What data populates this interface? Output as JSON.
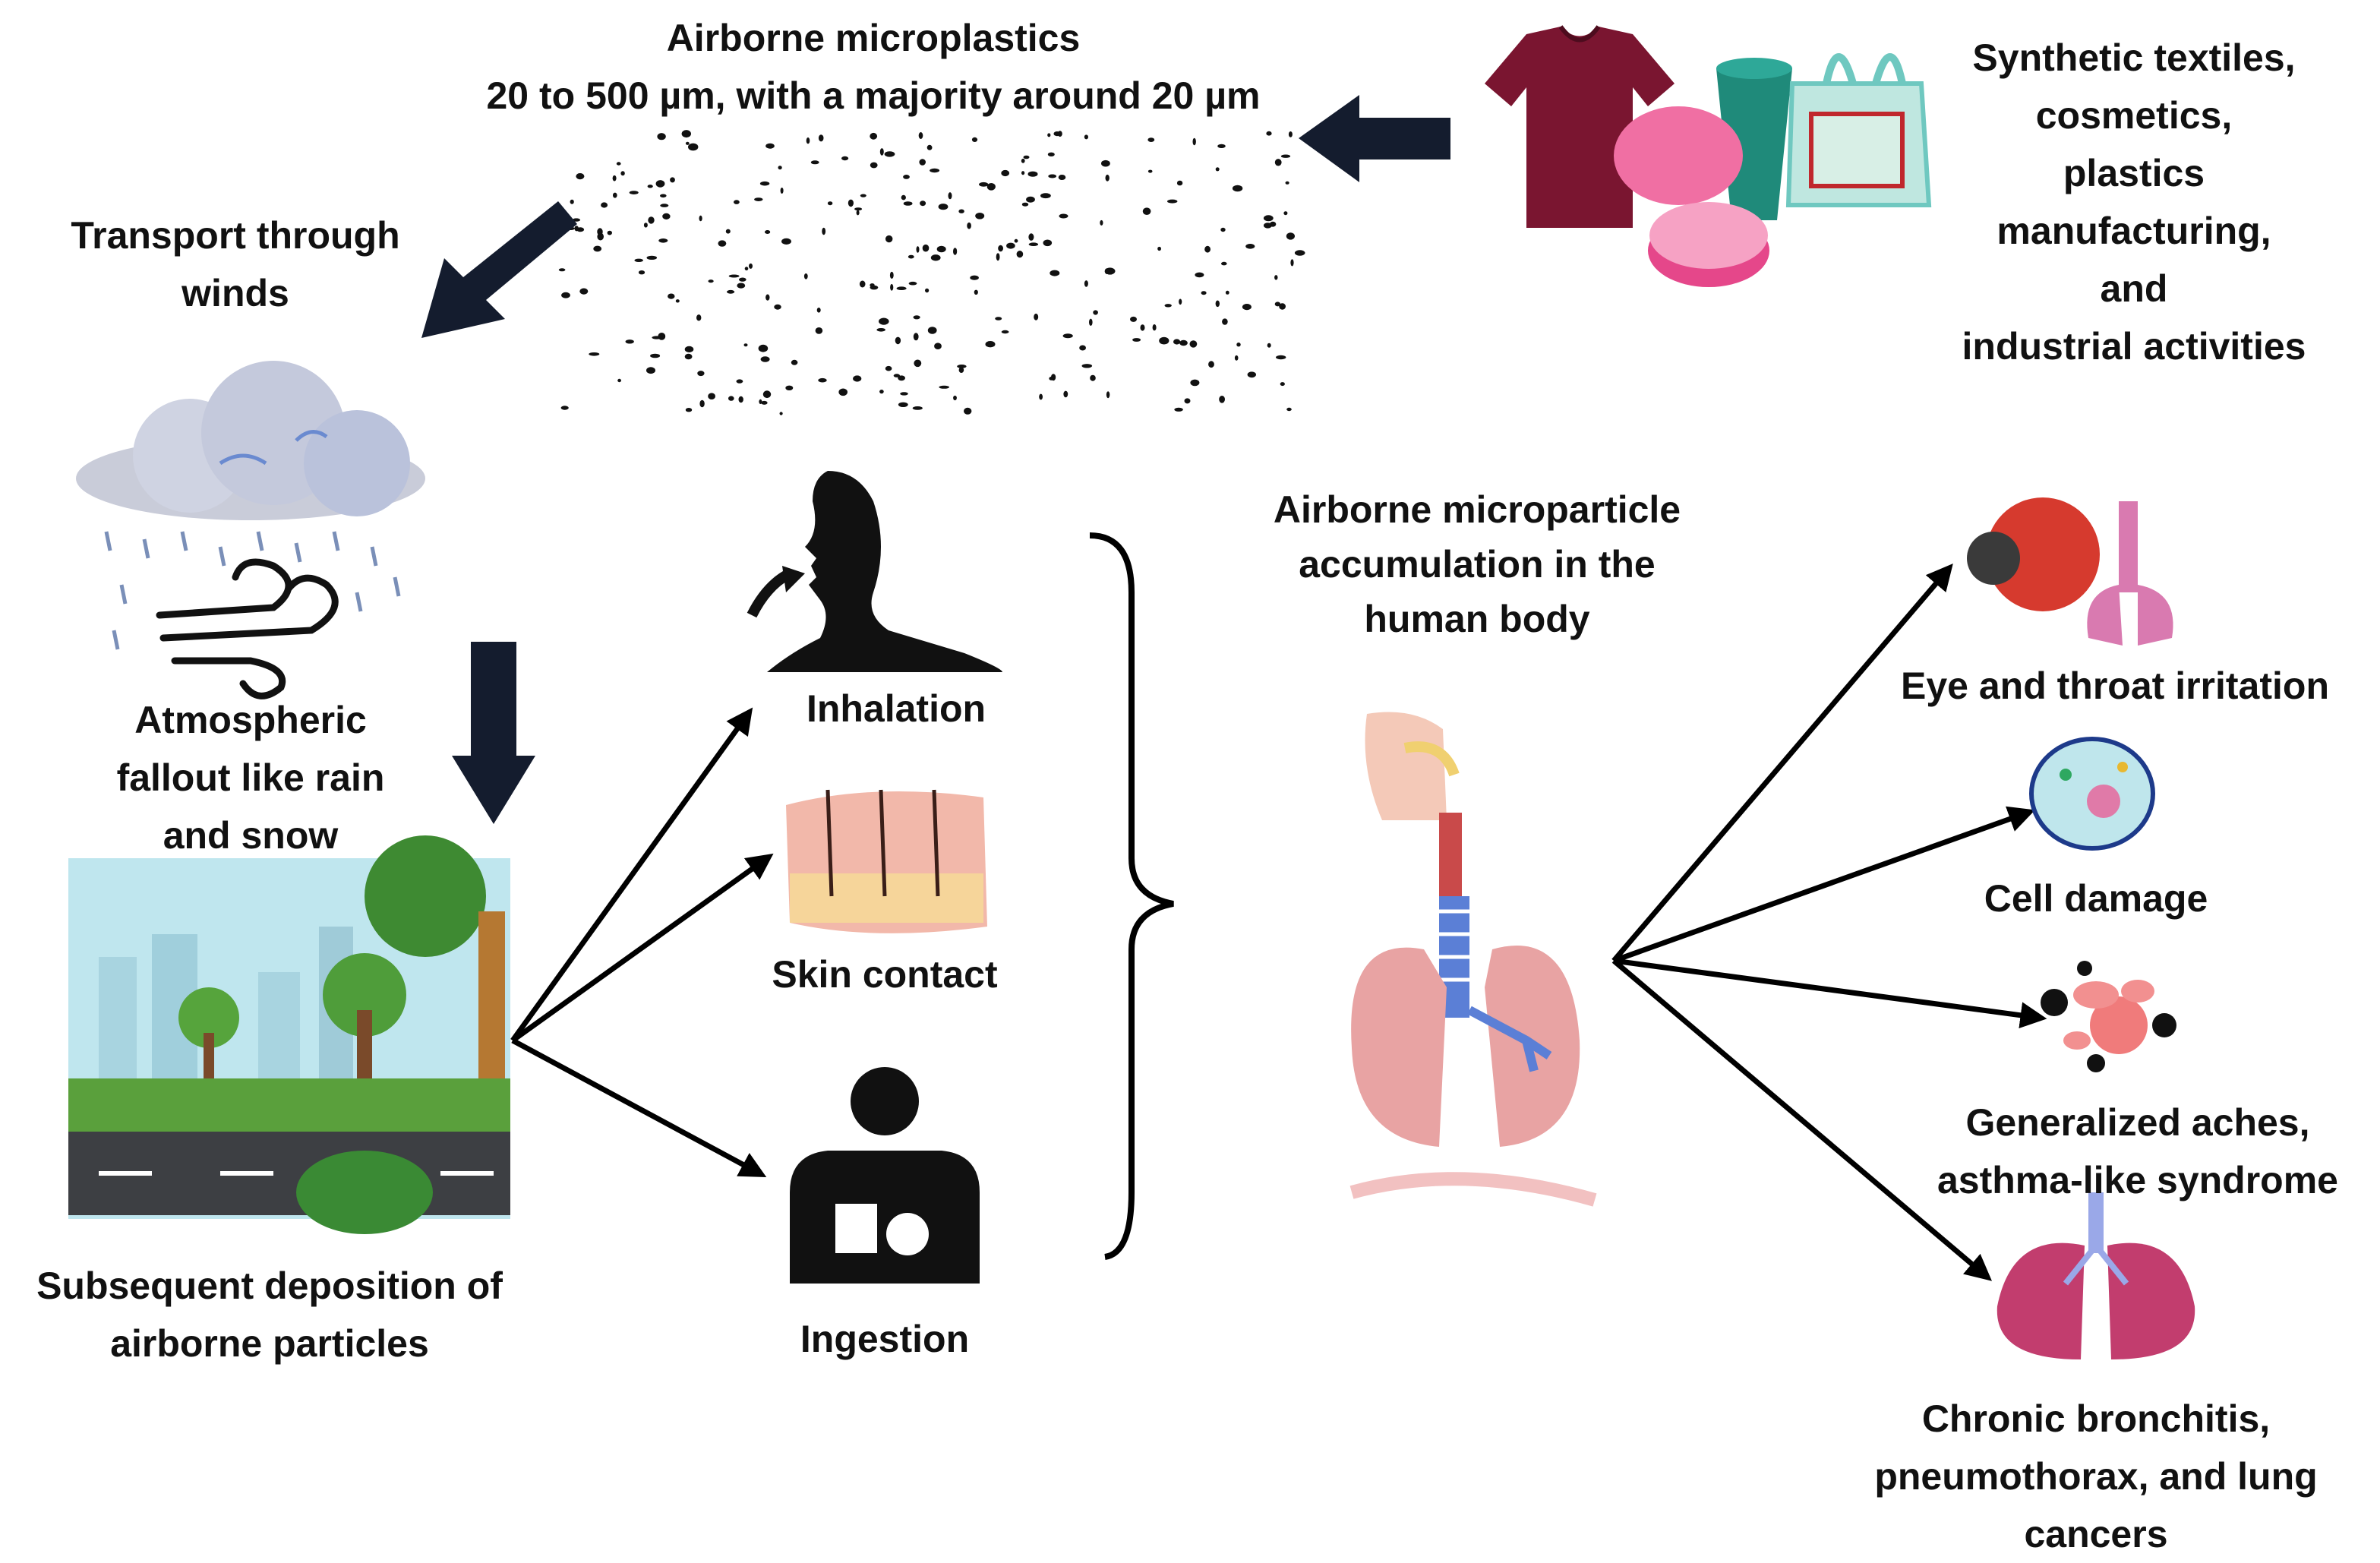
{
  "labels": {
    "airborne_title": [
      "Airborne microplastics",
      "20 to 500 µm, with a majority around 20 µm"
    ],
    "sources": [
      "Synthetic textiles,",
      "cosmetics,",
      "plastics",
      "manufacturing,",
      "and",
      "industrial activities"
    ],
    "transport": [
      "Transport through",
      "winds"
    ],
    "fallout": [
      "Atmospheric",
      "fallout like rain",
      "and snow"
    ],
    "deposition": [
      "Subsequent deposition of",
      "airborne particles"
    ],
    "inhalation": "Inhalation",
    "skin_contact": "Skin contact",
    "ingestion": "Ingestion",
    "accumulation": [
      "Airborne microparticle",
      "accumulation in the",
      "human body"
    ],
    "eye_throat": "Eye and throat irritation",
    "cell_damage": "Cell damage",
    "aches": [
      "Generalized aches,",
      "asthma-like syndrome"
    ],
    "chronic": [
      "Chronic bronchitis,",
      "pneumothorax, and lung",
      "cancers"
    ]
  },
  "colors": {
    "arrow": "#141c2e",
    "lung": "#e8a3a3",
    "trachea": "#5b7fd6",
    "shirt": "#7a1530",
    "sky": "#bfe6ee",
    "grass": "#5aa03c"
  }
}
